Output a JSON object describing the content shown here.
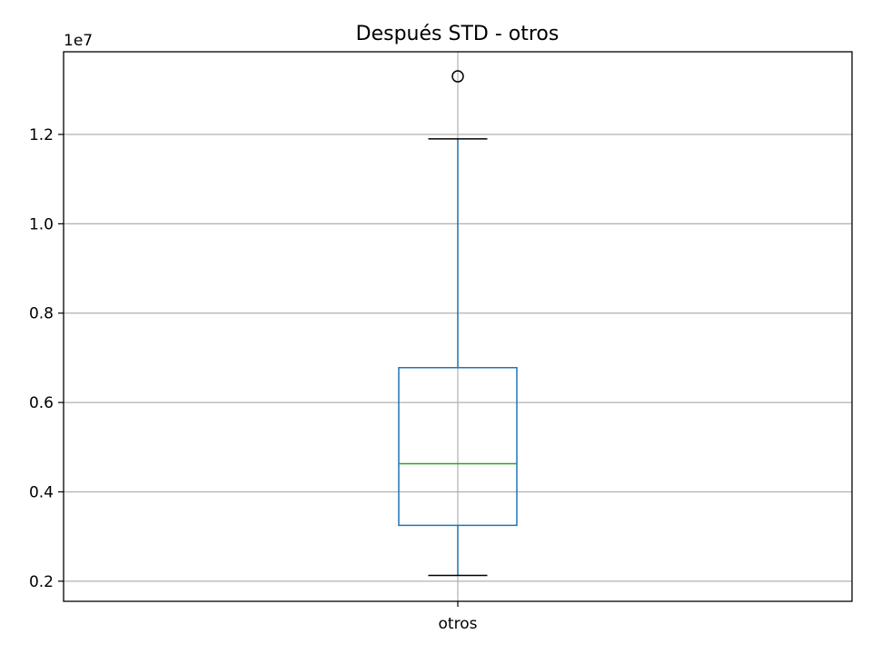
{
  "chart_data": {
    "type": "box",
    "title": "Después STD - otros",
    "xlabel": "",
    "ylabel": "",
    "y_offset_label": "1e7",
    "categories": [
      "otros"
    ],
    "boxes": [
      {
        "category": "otros",
        "whisker_low": 2130000,
        "q1": 3250000,
        "median": 4630000,
        "q3": 6780000,
        "whisker_high": 11900000,
        "outliers": [
          13300000
        ]
      }
    ],
    "ylim": [
      1550000,
      13850000
    ],
    "yticks": [
      2000000,
      4000000,
      6000000,
      8000000,
      10000000,
      12000000
    ],
    "ytick_labels": [
      "0.2",
      "0.4",
      "0.6",
      "0.8",
      "1.0",
      "1.2"
    ],
    "grid": true,
    "colors": {
      "box": "#1f77b4",
      "median": "#2ca02c",
      "caps": "#000000",
      "grid": "#b0b0b0",
      "outlier": "#000000"
    }
  }
}
